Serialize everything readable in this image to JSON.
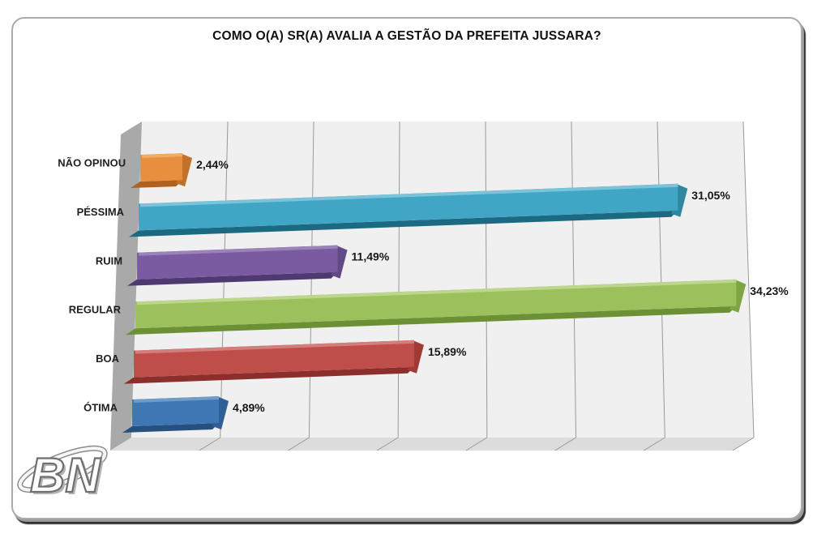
{
  "chart_data": {
    "type": "bar",
    "orientation": "horizontal",
    "style": "3d-perspective",
    "title": "COMO O(A) SR(A) AVALIA A GESTÃO DA PREFEITA JUSSARA?",
    "categories": [
      "NÃO OPINOU",
      "PÉSSIMA",
      "RUIM",
      "REGULAR",
      "BOA",
      "ÓTIMA"
    ],
    "values": [
      2.44,
      31.05,
      11.49,
      34.23,
      15.89,
      4.89
    ],
    "value_labels": [
      "2,44%",
      "31,05%",
      "11,49%",
      "34,23%",
      "15,89%",
      "4,89%"
    ],
    "xlabel": "",
    "ylabel": "",
    "xlim": [
      0,
      35
    ],
    "grid_step": 5,
    "grid": true,
    "legend": false,
    "colors": [
      {
        "main": "#E78F3F",
        "light": "#F2AC62",
        "dark": "#AF6120",
        "cap": "#C1712A"
      },
      {
        "main": "#41A5C5",
        "light": "#79C4D9",
        "dark": "#1C6A81",
        "cap": "#2F87A0"
      },
      {
        "main": "#7A5BA1",
        "light": "#9B82B9",
        "dark": "#4E3A70",
        "cap": "#624A85"
      },
      {
        "main": "#9CC05C",
        "light": "#BCD68B",
        "dark": "#6C9036",
        "cap": "#7FA443"
      },
      {
        "main": "#BF4E4B",
        "light": "#D47E7C",
        "dark": "#8A2F2C",
        "cap": "#9F3A37"
      },
      {
        "main": "#3F77B5",
        "light": "#6F9CCB",
        "dark": "#27507F",
        "cap": "#305F96"
      }
    ],
    "surface": {
      "back_wall": "#F0F0F0",
      "left_wall": "#A9A9A9",
      "floor": "#DCDCDC",
      "gridline": "#999999",
      "label_color": "#1F1F1F"
    }
  },
  "logo": {
    "text": "BN"
  }
}
